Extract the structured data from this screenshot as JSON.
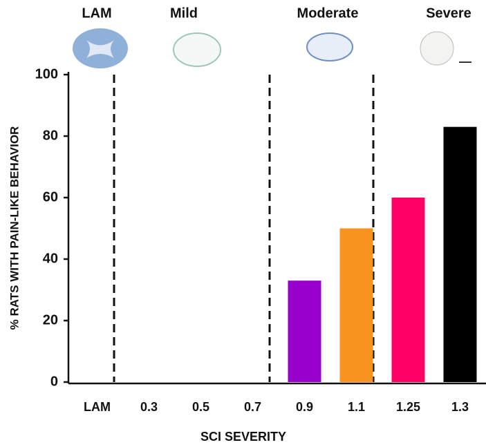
{
  "chart_data": {
    "type": "bar",
    "group_labels": [
      "LAM",
      "Mild",
      "Moderate",
      "Severe"
    ],
    "x_label": "SCI SEVERITY",
    "y_label": "% RATS WITH PAIN-LIKE BEHAVIOR",
    "categories": [
      "LAM",
      "0.3",
      "0.5",
      "0.7",
      "0.9",
      "1.1",
      "1.25",
      "1.3"
    ],
    "values": [
      0,
      0,
      0,
      0,
      33,
      50,
      60,
      83
    ],
    "colors": [
      null,
      null,
      null,
      null,
      "#9900cc",
      "#f7931e",
      "#ff0066",
      "#000000"
    ],
    "ylim": [
      0,
      100
    ],
    "yticks": [
      0,
      20,
      40,
      60,
      80,
      100
    ],
    "grid": false
  }
}
